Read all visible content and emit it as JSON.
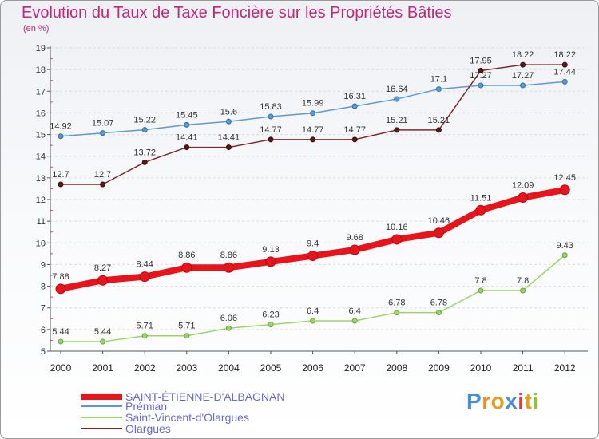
{
  "chart_data": {
    "type": "line",
    "title": "Evolution du Taux de Taxe Foncière sur les Propriétés Bâties",
    "unit_label": "(en %)",
    "xlabel": "",
    "ylabel": "",
    "ylim": [
      5,
      19
    ],
    "yticks": [
      "5",
      "6",
      "7",
      "8",
      "9",
      "10",
      "11",
      "12",
      "13",
      "14",
      "15",
      "16",
      "17",
      "18",
      "19"
    ],
    "categories": [
      "2000",
      "2001",
      "2002",
      "2003",
      "2004",
      "2005",
      "2006",
      "2007",
      "2008",
      "2009",
      "2010",
      "2011",
      "2012"
    ],
    "series": [
      {
        "name": "Prémian",
        "color": "#5b9bd5",
        "values": [
          14.92,
          15.07,
          15.22,
          15.45,
          15.6,
          15.83,
          15.99,
          16.31,
          16.64,
          17.1,
          17.27,
          17.27,
          17.44
        ],
        "labels": [
          "14.92",
          "15.07",
          "15.22",
          "15.45",
          "15.6",
          "15.83",
          "15.99",
          "16.31",
          "16.64",
          "17.1",
          "17.27",
          "17.27",
          "17.44"
        ]
      },
      {
        "name": "Olargues",
        "color": "#7a2a2a",
        "values": [
          12.7,
          12.7,
          13.72,
          14.41,
          14.41,
          14.77,
          14.77,
          14.77,
          15.21,
          15.21,
          17.95,
          18.22,
          18.22
        ],
        "labels": [
          "12.7",
          "12.7",
          "13.72",
          "14.41",
          "14.41",
          "14.77",
          "14.77",
          "14.77",
          "15.21",
          "15.21",
          "17.95",
          "18.22",
          "18.22"
        ]
      },
      {
        "name": "SAINT-ÉTIENNE-D'ALBAGNAN",
        "color": "#e8141b",
        "values": [
          7.88,
          8.27,
          8.44,
          8.86,
          8.86,
          9.13,
          9.4,
          9.68,
          10.16,
          10.46,
          11.51,
          12.09,
          12.45
        ],
        "labels": [
          "7.88",
          "8.27",
          "8.44",
          "8.86",
          "8.86",
          "9.13",
          "9.4",
          "9.68",
          "10.16",
          "10.46",
          "11.51",
          "12.09",
          "12.45"
        ]
      },
      {
        "name": "Saint-Vincent-d'Olargues",
        "color": "#9ad46a",
        "values": [
          5.44,
          5.44,
          5.71,
          5.71,
          6.06,
          6.23,
          6.4,
          6.4,
          6.78,
          6.78,
          7.8,
          7.8,
          9.43
        ],
        "labels": [
          "5.44",
          "5.44",
          "5.71",
          "5.71",
          "6.06",
          "6.23",
          "6.4",
          "6.4",
          "6.78",
          "6.78",
          "7.8",
          "7.8",
          "9.43"
        ]
      }
    ],
    "legend": [
      {
        "name": "SAINT-ÉTIENNE-D'ALBAGNAN",
        "color": "#e8141b",
        "style": "thick"
      },
      {
        "name": "Prémian",
        "color": "#5b9bd5",
        "style": "thin"
      },
      {
        "name": "Saint-Vincent-d'Olargues",
        "color": "#9ad46a",
        "style": "thin"
      },
      {
        "name": "Olargues",
        "color": "#7a2a2a",
        "style": "thin"
      }
    ],
    "legend_position": "bottom-left"
  },
  "logo": {
    "text": "Proxiti"
  }
}
